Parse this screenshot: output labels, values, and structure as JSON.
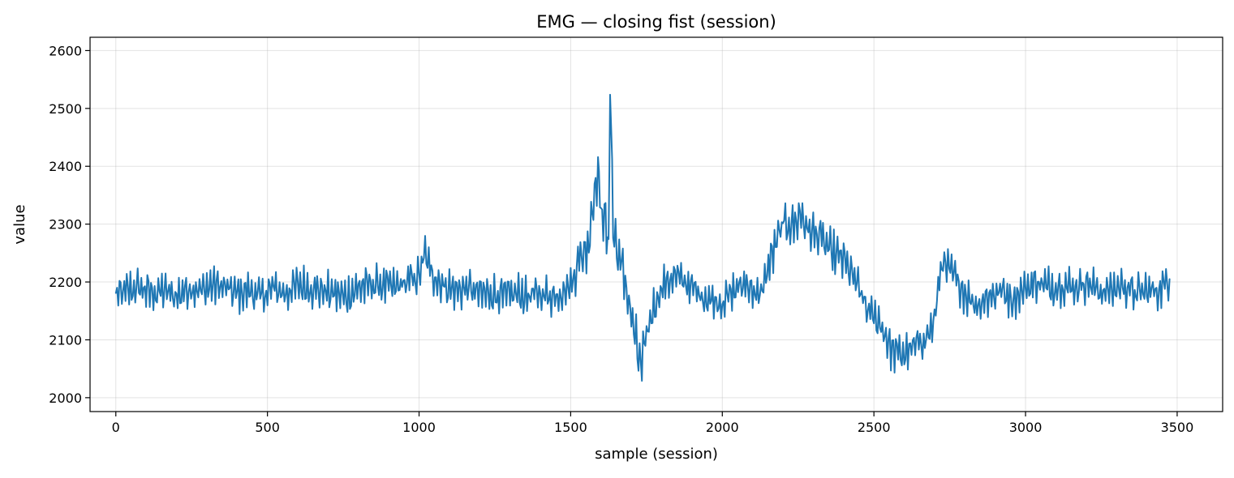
{
  "chart_data": {
    "type": "line",
    "title": "EMG — closing fist (session)",
    "xlabel": "sample (session)",
    "ylabel": "value",
    "xlim": [
      -85,
      3650
    ],
    "ylim": [
      1976,
      2623
    ],
    "xticks": [
      0,
      500,
      1000,
      1500,
      2000,
      2500,
      3000,
      3500
    ],
    "yticks": [
      2000,
      2100,
      2200,
      2300,
      2400,
      2500,
      2600
    ],
    "grid": true,
    "legend": "none",
    "series": [
      {
        "color": "#1f77b4",
        "x": [
          0,
          40,
          80,
          120,
          160,
          200,
          240,
          280,
          320,
          360,
          400,
          440,
          480,
          520,
          560,
          600,
          640,
          680,
          720,
          760,
          800,
          840,
          880,
          920,
          960,
          1000,
          1020,
          1040,
          1080,
          1120,
          1160,
          1200,
          1240,
          1280,
          1320,
          1360,
          1400,
          1440,
          1480,
          1500,
          1520,
          1540,
          1560,
          1575,
          1590,
          1600,
          1615,
          1625,
          1630,
          1640,
          1660,
          1680,
          1700,
          1720,
          1735,
          1750,
          1770,
          1800,
          1840,
          1880,
          1920,
          1960,
          2000,
          2040,
          2080,
          2120,
          2160,
          2200,
          2240,
          2260,
          2280,
          2320,
          2360,
          2400,
          2440,
          2480,
          2520,
          2560,
          2600,
          2640,
          2680,
          2700,
          2720,
          2760,
          2800,
          2840,
          2880,
          2920,
          2960,
          3000,
          3040,
          3080,
          3120,
          3160,
          3200,
          3240,
          3280,
          3320,
          3360,
          3400,
          3440,
          3475
        ],
        "y": [
          2176,
          2185,
          2190,
          2180,
          2185,
          2175,
          2190,
          2185,
          2195,
          2190,
          2180,
          2185,
          2175,
          2190,
          2180,
          2195,
          2190,
          2185,
          2180,
          2175,
          2190,
          2195,
          2195,
          2190,
          2200,
          2210,
          2250,
          2215,
          2195,
          2185,
          2190,
          2180,
          2180,
          2175,
          2180,
          2175,
          2180,
          2175,
          2185,
          2195,
          2230,
          2250,
          2270,
          2350,
          2385,
          2330,
          2300,
          2250,
          2560,
          2290,
          2240,
          2200,
          2140,
          2080,
          2050,
          2110,
          2150,
          2190,
          2210,
          2200,
          2180,
          2170,
          2165,
          2185,
          2200,
          2170,
          2240,
          2300,
          2300,
          2320,
          2290,
          2280,
          2250,
          2240,
          2200,
          2150,
          2130,
          2080,
          2075,
          2090,
          2110,
          2130,
          2230,
          2215,
          2180,
          2160,
          2175,
          2185,
          2170,
          2190,
          2200,
          2190,
          2195,
          2190,
          2200,
          2185,
          2185,
          2195,
          2180,
          2185,
          2185,
          2205
        ]
      }
    ]
  }
}
